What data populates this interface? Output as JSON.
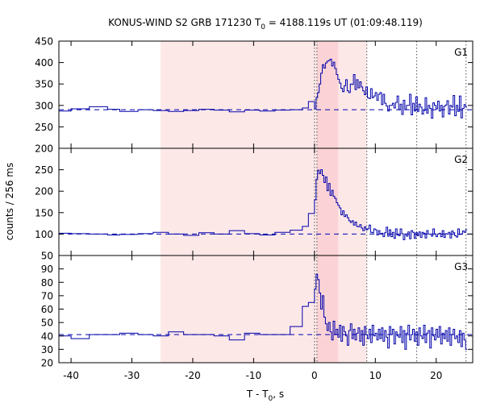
{
  "chart_data": {
    "type": "line",
    "title_main": "KONUS-WIND S2 GRB 171230 T",
    "title_sub": "0",
    "title_rest": " = 4188.119s UT (01:09:48.119)",
    "xlabel_main": "T - T",
    "xlabel_sub": "0",
    "xlabel_rest": ", s",
    "ylabel": "counts / 256 ms",
    "xlim": [
      -42,
      26
    ],
    "x_ticks": [
      -40,
      -30,
      -20,
      -10,
      0,
      10,
      20
    ],
    "x_tick_labels": [
      "-40",
      "-30",
      "-20",
      "-10",
      "0",
      "10",
      "20"
    ],
    "step_style": "histogram",
    "colors": {
      "series": "#0000aa",
      "background_interval": "#fde8e8",
      "peak_interval": "#fbd3d6",
      "dotted_markers": "#555555"
    },
    "shaded_intervals": [
      {
        "from": -25.3,
        "to": 8.6,
        "style": "light"
      },
      {
        "from": 0.4,
        "to": 3.9,
        "style": "dark"
      }
    ],
    "vertical_markers": [
      0,
      0.4,
      8.6,
      16.8,
      24.9
    ],
    "panels": [
      {
        "label": "G1",
        "ylim": [
          200,
          450
        ],
        "y_ticks": [
          200,
          250,
          300,
          350,
          400,
          450
        ],
        "y_tick_labels": [
          "200",
          "250",
          "300",
          "350",
          "400",
          "450"
        ],
        "background_level": 290,
        "coarse_bins": [
          [
            -42,
            -40,
            287
          ],
          [
            -40,
            -37,
            292
          ],
          [
            -37,
            -34,
            297
          ],
          [
            -34,
            -32,
            291
          ],
          [
            -32,
            -29,
            286
          ],
          [
            -29,
            -26.5,
            290
          ],
          [
            -26.5,
            -24,
            288
          ],
          [
            -24,
            -21.5,
            286
          ],
          [
            -21.5,
            -19,
            288
          ],
          [
            -19,
            -16.5,
            291
          ],
          [
            -16.5,
            -14,
            289
          ],
          [
            -14,
            -11.5,
            285
          ],
          [
            -11.5,
            -9,
            289
          ],
          [
            -9,
            -6.5,
            287
          ],
          [
            -6.5,
            -4,
            289
          ],
          [
            -4,
            -2,
            290
          ],
          [
            -2,
            -1,
            294
          ],
          [
            -1,
            0,
            309
          ]
        ],
        "fine_bin_width": 0.256,
        "fine_x_start": 0,
        "fine_values": [
          292,
          318,
          330,
          350,
          375,
          395,
          387,
          399,
          403,
          405,
          408,
          392,
          401,
          386,
          372,
          361,
          352,
          340,
          332,
          346,
          360,
          334,
          330,
          350,
          349,
          372,
          337,
          360,
          341,
          355,
          343,
          334,
          325,
          343,
          318,
          316,
          339,
          318,
          322,
          330,
          312,
          326,
          330,
          302,
          326,
          305,
          299,
          287,
          300,
          300,
          305,
          294,
          307,
          322,
          290,
          303,
          279,
          312,
          290,
          300,
          300,
          326,
          278,
          305,
          287,
          320,
          286,
          303,
          296,
          280,
          288,
          318,
          282,
          300,
          293,
          270,
          306,
          300,
          292,
          310,
          287,
          300,
          273,
          298,
          301,
          311,
          280,
          300,
          296,
          323,
          276,
          300,
          286,
          322,
          271,
          293,
          302,
          296
        ]
      },
      {
        "label": "G2",
        "ylim": [
          50,
          300
        ],
        "y_ticks": [
          50,
          100,
          150,
          200,
          250
        ],
        "y_tick_labels": [
          "50",
          "100",
          "150",
          "200",
          "250"
        ],
        "background_level": 100,
        "coarse_bins": [
          [
            -42,
            -40,
            102
          ],
          [
            -40,
            -37,
            101
          ],
          [
            -37,
            -34,
            100
          ],
          [
            -34,
            -32,
            98
          ],
          [
            -32,
            -29,
            99
          ],
          [
            -29,
            -26.5,
            101
          ],
          [
            -26.5,
            -24,
            104
          ],
          [
            -24,
            -21.5,
            100
          ],
          [
            -21.5,
            -19,
            97
          ],
          [
            -19,
            -16.5,
            103
          ],
          [
            -16.5,
            -14,
            100
          ],
          [
            -14,
            -11.5,
            108
          ],
          [
            -11.5,
            -9,
            101
          ],
          [
            -9,
            -6.5,
            98
          ],
          [
            -6.5,
            -4,
            104
          ],
          [
            -4,
            -2,
            109
          ],
          [
            -2,
            -1,
            118
          ],
          [
            -1,
            0,
            148
          ]
        ],
        "fine_bin_width": 0.256,
        "fine_x_start": 0,
        "fine_values": [
          180,
          228,
          249,
          241,
          250,
          237,
          220,
          233,
          201,
          218,
          190,
          202,
          188,
          183,
          173,
          167,
          161,
          145,
          154,
          141,
          145,
          138,
          131,
          127,
          131,
          121,
          128,
          118,
          117,
          122,
          114,
          108,
          117,
          110,
          112,
          121,
          104,
          103,
          112,
          110,
          98,
          108,
          100,
          102,
          94,
          103,
          116,
          95,
          110,
          94,
          104,
          90,
          112,
          98,
          96,
          112,
          101,
          87,
          100,
          95,
          105,
          89,
          108,
          104,
          90,
          103,
          96,
          105,
          92,
          104,
          102,
          91,
          108,
          100,
          100,
          95,
          112,
          100,
          94,
          100,
          102,
          94,
          108,
          92,
          101,
          100,
          104,
          91,
          107,
          103,
          96,
          93,
          112,
          99,
          100,
          107,
          104,
          110
        ]
      },
      {
        "label": "G3",
        "ylim": [
          20,
          100
        ],
        "y_ticks": [
          20,
          30,
          40,
          50,
          60,
          70,
          80,
          90
        ],
        "y_tick_labels": [
          "20",
          "30",
          "40",
          "50",
          "60",
          "70",
          "80",
          "90"
        ],
        "background_level": 41,
        "coarse_bins": [
          [
            -42,
            -40,
            40
          ],
          [
            -40,
            -37,
            38
          ],
          [
            -37,
            -34,
            41
          ],
          [
            -34,
            -32,
            41
          ],
          [
            -32,
            -29,
            42
          ],
          [
            -29,
            -26.5,
            41
          ],
          [
            -26.5,
            -24,
            40
          ],
          [
            -24,
            -21.5,
            43
          ],
          [
            -21.5,
            -19,
            41
          ],
          [
            -19,
            -16.5,
            41
          ],
          [
            -16.5,
            -14,
            40
          ],
          [
            -14,
            -11.5,
            37
          ],
          [
            -11.5,
            -9,
            42
          ],
          [
            -9,
            -6.5,
            41
          ],
          [
            -6.5,
            -4,
            41
          ],
          [
            -4,
            -2,
            47
          ],
          [
            -2,
            -1,
            62
          ],
          [
            -1,
            0,
            65
          ]
        ],
        "fine_bin_width": 0.256,
        "fine_x_start": 0,
        "fine_values": [
          75,
          86,
          82,
          72,
          60,
          70,
          54,
          49,
          44,
          50,
          43,
          37,
          51,
          41,
          45,
          39,
          48,
          36,
          47,
          43,
          40,
          33,
          44,
          49,
          38,
          45,
          37,
          42,
          46,
          36,
          44,
          33,
          47,
          41,
          38,
          45,
          35,
          48,
          40,
          42,
          37,
          45,
          38,
          46,
          36,
          44,
          39,
          31,
          47,
          41,
          45,
          34,
          43,
          40,
          39,
          47,
          35,
          44,
          30,
          42,
          48,
          37,
          41,
          45,
          36,
          43,
          33,
          46,
          40,
          38,
          48,
          35,
          42,
          44,
          31,
          46,
          40,
          37,
          45,
          39,
          47,
          34,
          42,
          38,
          44,
          36,
          46,
          33,
          41,
          45,
          38,
          40,
          35,
          44,
          32,
          42,
          37,
          30
        ]
      }
    ]
  }
}
